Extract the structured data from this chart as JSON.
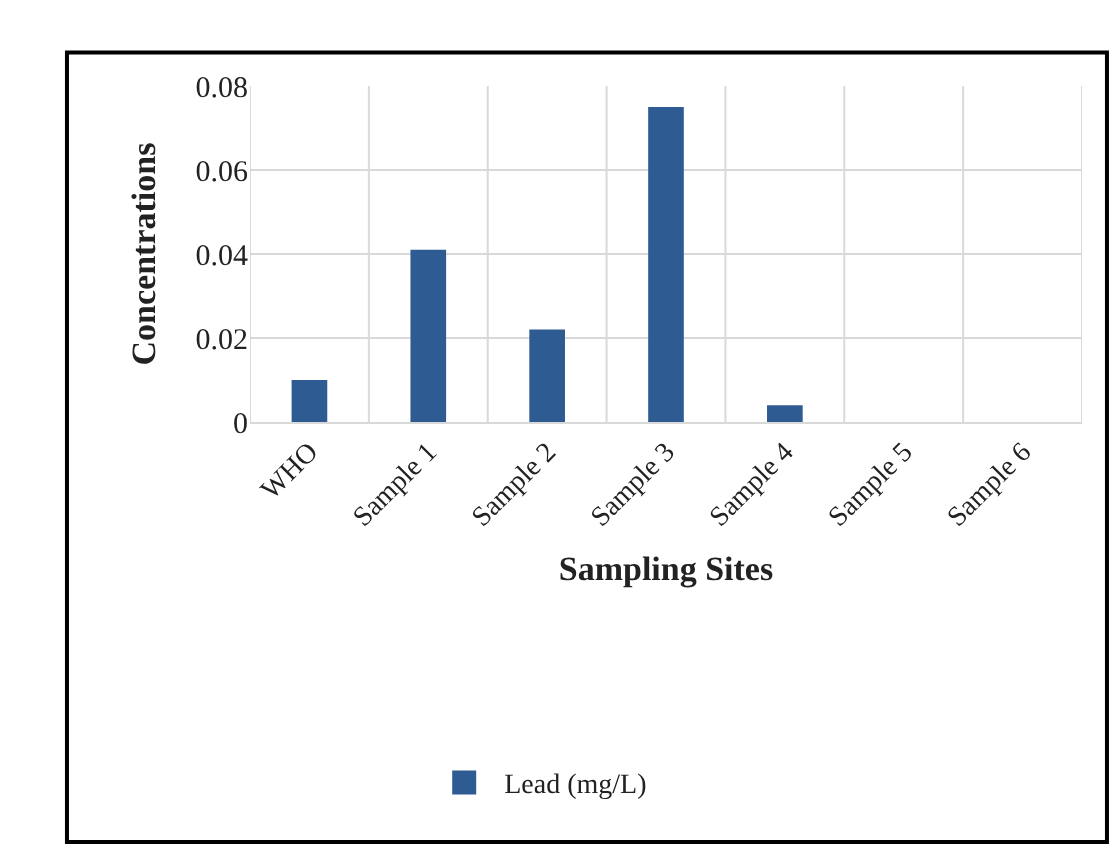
{
  "chart_data": {
    "type": "bar",
    "xlabel": "Sampling Sites",
    "ylabel": "Concentrations",
    "categories": [
      "WHO",
      "Sample 1",
      "Sample 2",
      "Sample 3",
      "Sample 4",
      "Sample 5",
      "Sample 6"
    ],
    "series": [
      {
        "name": "Lead (mg/L)",
        "color": "#2f5b93",
        "values": [
          0.01,
          0.041,
          0.022,
          0.075,
          0.004,
          0,
          0
        ]
      }
    ],
    "ylim": [
      0,
      0.08
    ],
    "yticks": [
      0,
      0.02,
      0.04,
      0.06,
      0.08
    ],
    "grid": true,
    "legend": "bottom"
  }
}
